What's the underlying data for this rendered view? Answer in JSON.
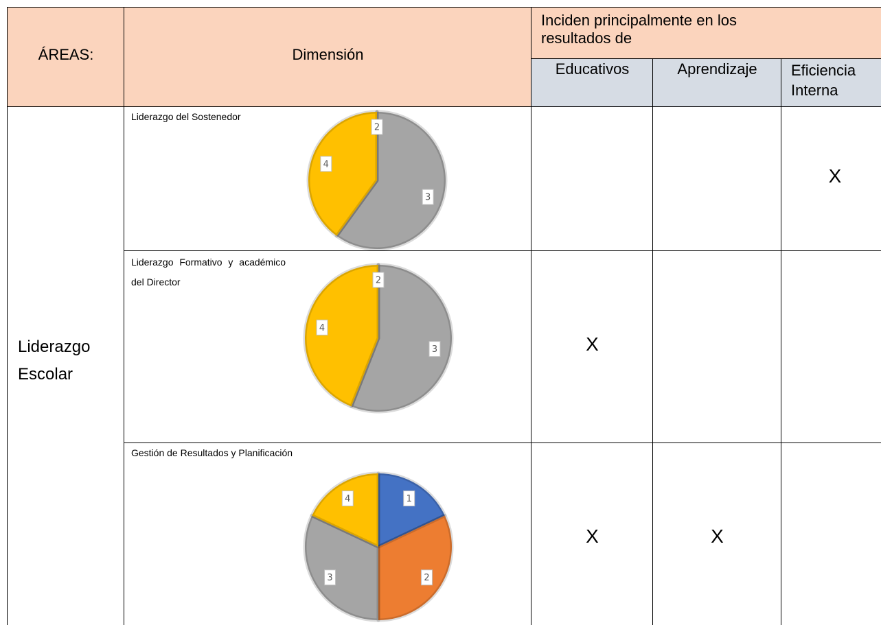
{
  "header": {
    "areas": "ÁREAS:",
    "dimension": "Dimensión",
    "group": "Inciden principalmente en los resultados de",
    "columns": [
      "Educativos",
      "Aprendizaje",
      "Eficiencia Interna"
    ]
  },
  "area": "Liderazgo Escolar",
  "rows": [
    {
      "dimension": "Liderazgo del Sostenedor",
      "marks": [
        {
          "column": 2,
          "text": "X"
        }
      ],
      "chart_data": {
        "type": "pie",
        "categories": [
          "2",
          "3",
          "4"
        ],
        "values": [
          0,
          60,
          40
        ],
        "colors": [
          "#ed7d31",
          "#a5a5a5",
          "#ffc000"
        ]
      }
    },
    {
      "dimension": "Liderazgo Formativo y académico del Director",
      "marks": [
        {
          "column": 0,
          "text": "X"
        }
      ],
      "chart_data": {
        "type": "pie",
        "categories": [
          "2",
          "3",
          "4"
        ],
        "values": [
          0,
          56,
          44
        ],
        "colors": [
          "#ed7d31",
          "#a5a5a5",
          "#ffc000"
        ]
      }
    },
    {
      "dimension": "Gestión de Resultados y Planificación",
      "marks": [
        {
          "column": 0,
          "text": "X"
        },
        {
          "column": 1,
          "text": "X"
        }
      ],
      "chart_data": {
        "type": "pie",
        "categories": [
          "1",
          "2",
          "3",
          "4"
        ],
        "values": [
          18,
          32,
          32,
          18
        ],
        "colors": [
          "#4472c4",
          "#ed7d31",
          "#a5a5a5",
          "#ffc000"
        ]
      }
    }
  ]
}
